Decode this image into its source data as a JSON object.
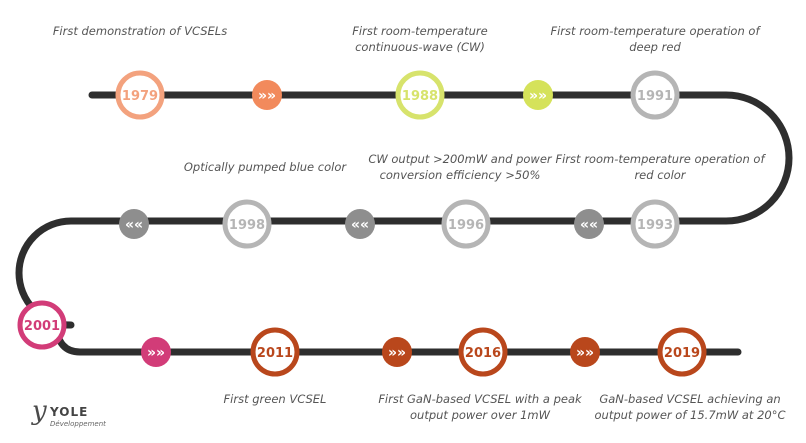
{
  "milestones": [
    {
      "year": "1979",
      "caption": "First demonstration of VCSELs",
      "color": "#f3a27e",
      "filled": false
    },
    {
      "year": "1988",
      "caption": "First room-temperature continuous-wave (CW)",
      "color": "#d7e36c",
      "filled": false
    },
    {
      "year": "1991",
      "caption": "First room-temperature operation of deep red",
      "color": "#b5b5b5",
      "filled": false
    },
    {
      "year": "1993",
      "caption": "First room-temperature operation of red color",
      "color": "#b5b5b5",
      "filled": false
    },
    {
      "year": "1996",
      "caption": "CW output >200mW and power conversion efficiency >50%",
      "color": "#b5b5b5",
      "filled": false
    },
    {
      "year": "1998",
      "caption": "Optically pumped blue color",
      "color": "#b5b5b5",
      "filled": false
    },
    {
      "year": "2001",
      "caption": "",
      "color": "#d23c78",
      "filled": false
    },
    {
      "year": "2011",
      "caption": "First green VCSEL",
      "color": "#b9471c",
      "filled": false
    },
    {
      "year": "2016",
      "caption": "First GaN-based VCSEL with a peak output power over 1mW",
      "color": "#b9471c",
      "filled": false
    },
    {
      "year": "2019",
      "caption": "GaN-based VCSEL achieving an output power of 15.7mW at 20°C",
      "color": "#b9471c",
      "filled": false
    }
  ],
  "arrows": [
    {
      "symbol": "»»",
      "color": "#f28a5c"
    },
    {
      "symbol": "»»",
      "color": "#d5e25a"
    },
    {
      "symbol": "««",
      "color": "#8e8e8e"
    },
    {
      "symbol": "««",
      "color": "#8e8e8e"
    },
    {
      "symbol": "««",
      "color": "#8e8e8e"
    },
    {
      "symbol": "»»",
      "color": "#d23c78"
    },
    {
      "symbol": "»»",
      "color": "#b9471c"
    },
    {
      "symbol": "»»",
      "color": "#b9471c"
    }
  ],
  "logo": {
    "name": "YOLE",
    "subtitle": "Développement"
  }
}
